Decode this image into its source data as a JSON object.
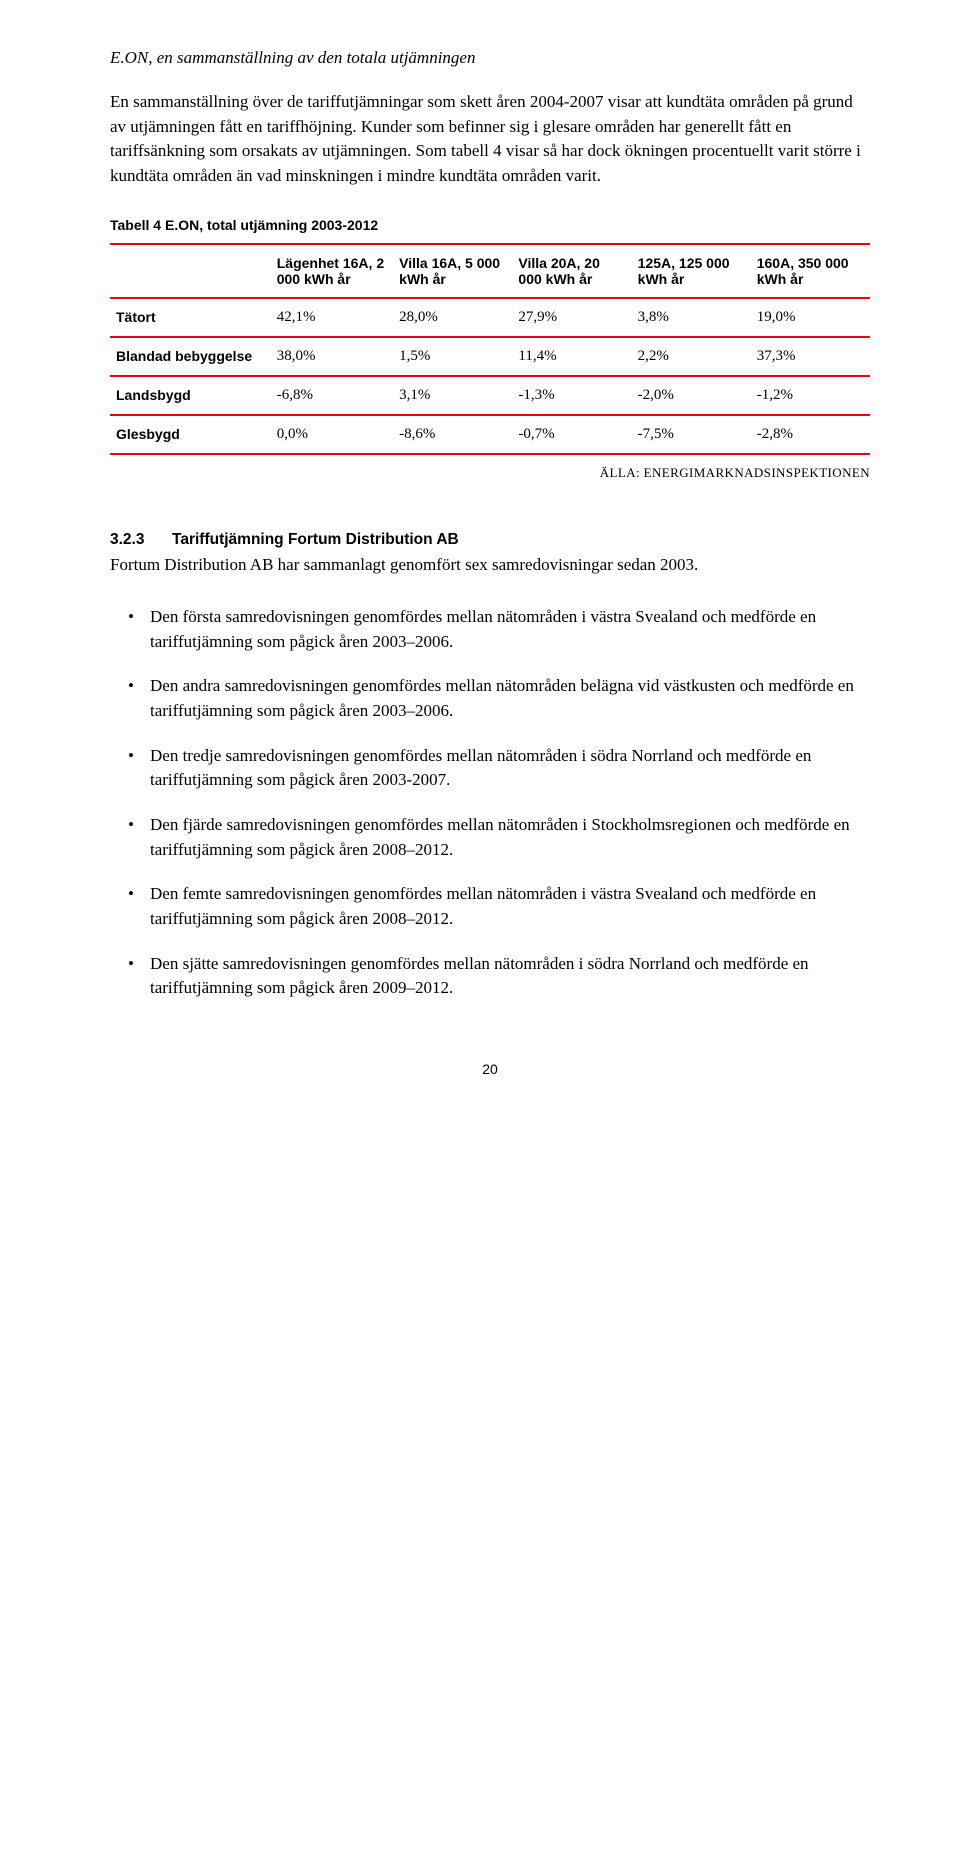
{
  "heading_italic": "E.ON, en sammanställning av den totala utjämningen",
  "para1": "En sammanställning över de tariffutjämningar som skett åren 2004-2007 visar att kundtäta områden på grund av utjämningen fått en tariffhöjning. Kunder som befinner sig i glesare områden har generellt fått en tariffsänkning som orsakats av utjämningen. Som tabell 4 visar så har dock ökningen procentuellt varit större i kundtäta områden än vad minskningen i mindre kundtäta områden varit.",
  "table": {
    "caption": "Tabell 4 E.ON, total utjämning 2003-2012",
    "columns": [
      "",
      "Lägenhet 16A, 2 000 kWh år",
      "Villa 16A, 5 000 kWh år",
      "Villa 20A, 20 000 kWh år",
      "125A, 125 000 kWh år",
      "160A, 350 000 kWh år"
    ],
    "rows": [
      {
        "label": "Tätort",
        "vals": [
          "42,1%",
          "28,0%",
          "27,9%",
          "3,8%",
          "19,0%"
        ]
      },
      {
        "label": "Blandad bebyggelse",
        "vals": [
          "38,0%",
          "1,5%",
          "11,4%",
          "2,2%",
          "37,3%"
        ]
      },
      {
        "label": "Landsbygd",
        "vals": [
          "-6,8%",
          "3,1%",
          "-1,3%",
          "-2,0%",
          "-1,2%"
        ]
      },
      {
        "label": "Glesbygd",
        "vals": [
          "0,0%",
          "-8,6%",
          "-0,7%",
          "-7,5%",
          "-2,8%"
        ]
      }
    ],
    "border_color": "#e30613"
  },
  "source": "ÄLLA: ENERGIMARKNADSINSPEKTIONEN",
  "subhead_num": "3.2.3",
  "subhead_text": "Tariffutjämning Fortum Distribution AB",
  "para2": "Fortum Distribution AB har sammanlagt genomfört sex samredovisningar sedan 2003.",
  "bullets": [
    "Den första samredovisningen genomfördes mellan nätområden i västra Svealand och medförde en tariffutjämning som pågick åren 2003–2006.",
    "Den andra samredovisningen genomfördes mellan nätområden belägna vid västkusten och medförde en tariffutjämning som pågick åren 2003–2006.",
    "Den tredje samredovisningen genomfördes mellan nätområden i södra Norrland och medförde en tariffutjämning som pågick åren 2003-2007.",
    "Den fjärde samredovisningen genomfördes mellan nätområden i Stockholmsregionen och medförde en tariffutjämning som pågick åren 2008–2012.",
    "Den femte samredovisningen genomfördes mellan nätområden i västra Svealand och medförde en tariffutjämning som pågick åren 2008–2012.",
    "Den sjätte samredovisningen genomfördes mellan nätområden i södra Norrland och medförde en tariffutjämning som pågick åren 2009–2012."
  ],
  "page_number": "20"
}
